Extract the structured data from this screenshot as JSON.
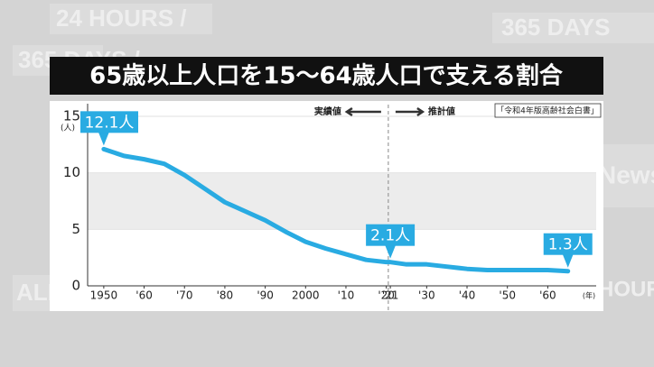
{
  "background_text": [
    "24 HOURS /",
    "365 DAYS /",
    "365 DAYS",
    "News",
    "ALL",
    "HOURS"
  ],
  "chart_data": {
    "type": "line",
    "title": "65歳以上人口を15〜64歳人口で支える割合",
    "source": "「令和4年版高齢社会白書」",
    "y_unit": "(人)",
    "x_unit": "(年)",
    "actual_label": "実績値",
    "estimate_label": "推計値",
    "divider_x": 2020.5,
    "x": [
      1950,
      1955,
      1960,
      1965,
      1970,
      1975,
      1980,
      1985,
      1990,
      1995,
      2000,
      2005,
      2010,
      2015,
      2020,
      2021,
      2025,
      2030,
      2035,
      2040,
      2045,
      2050,
      2055,
      2060,
      2065
    ],
    "series": [
      {
        "name": "割合",
        "color": "#29abe2",
        "values": [
          12.1,
          11.5,
          11.2,
          10.8,
          9.8,
          8.6,
          7.4,
          6.6,
          5.8,
          4.8,
          3.9,
          3.3,
          2.8,
          2.3,
          2.1,
          2.1,
          1.9,
          1.9,
          1.7,
          1.5,
          1.4,
          1.4,
          1.4,
          1.4,
          1.3
        ],
        "value_labels": [
          "12.1人",
          null,
          null,
          null,
          null,
          null,
          null,
          null,
          null,
          null,
          null,
          null,
          null,
          null,
          null,
          "2.1人",
          null,
          null,
          null,
          null,
          null,
          null,
          null,
          null,
          "1.3人"
        ]
      }
    ],
    "xlim": [
      1946,
      2072
    ],
    "xticks": [
      1950,
      {
        "value": 1960,
        "label": "'60"
      },
      {
        "value": 1970,
        "label": "'70"
      },
      {
        "value": 1980,
        "label": "'80"
      },
      {
        "value": 1990,
        "label": "'90"
      },
      2000,
      {
        "value": 2010,
        "label": "'10"
      },
      {
        "value": 2020,
        "label": "'20"
      },
      {
        "value": 2021,
        "label": "'21"
      },
      {
        "value": 2030,
        "label": "'30"
      },
      {
        "value": 2040,
        "label": "'40"
      },
      {
        "value": 2050,
        "label": "'50"
      },
      {
        "value": 2060,
        "label": "'60"
      }
    ],
    "ylim": [
      0,
      15
    ],
    "yticks": [
      0,
      5,
      10,
      15
    ],
    "bands": [
      [
        5,
        10
      ]
    ]
  }
}
